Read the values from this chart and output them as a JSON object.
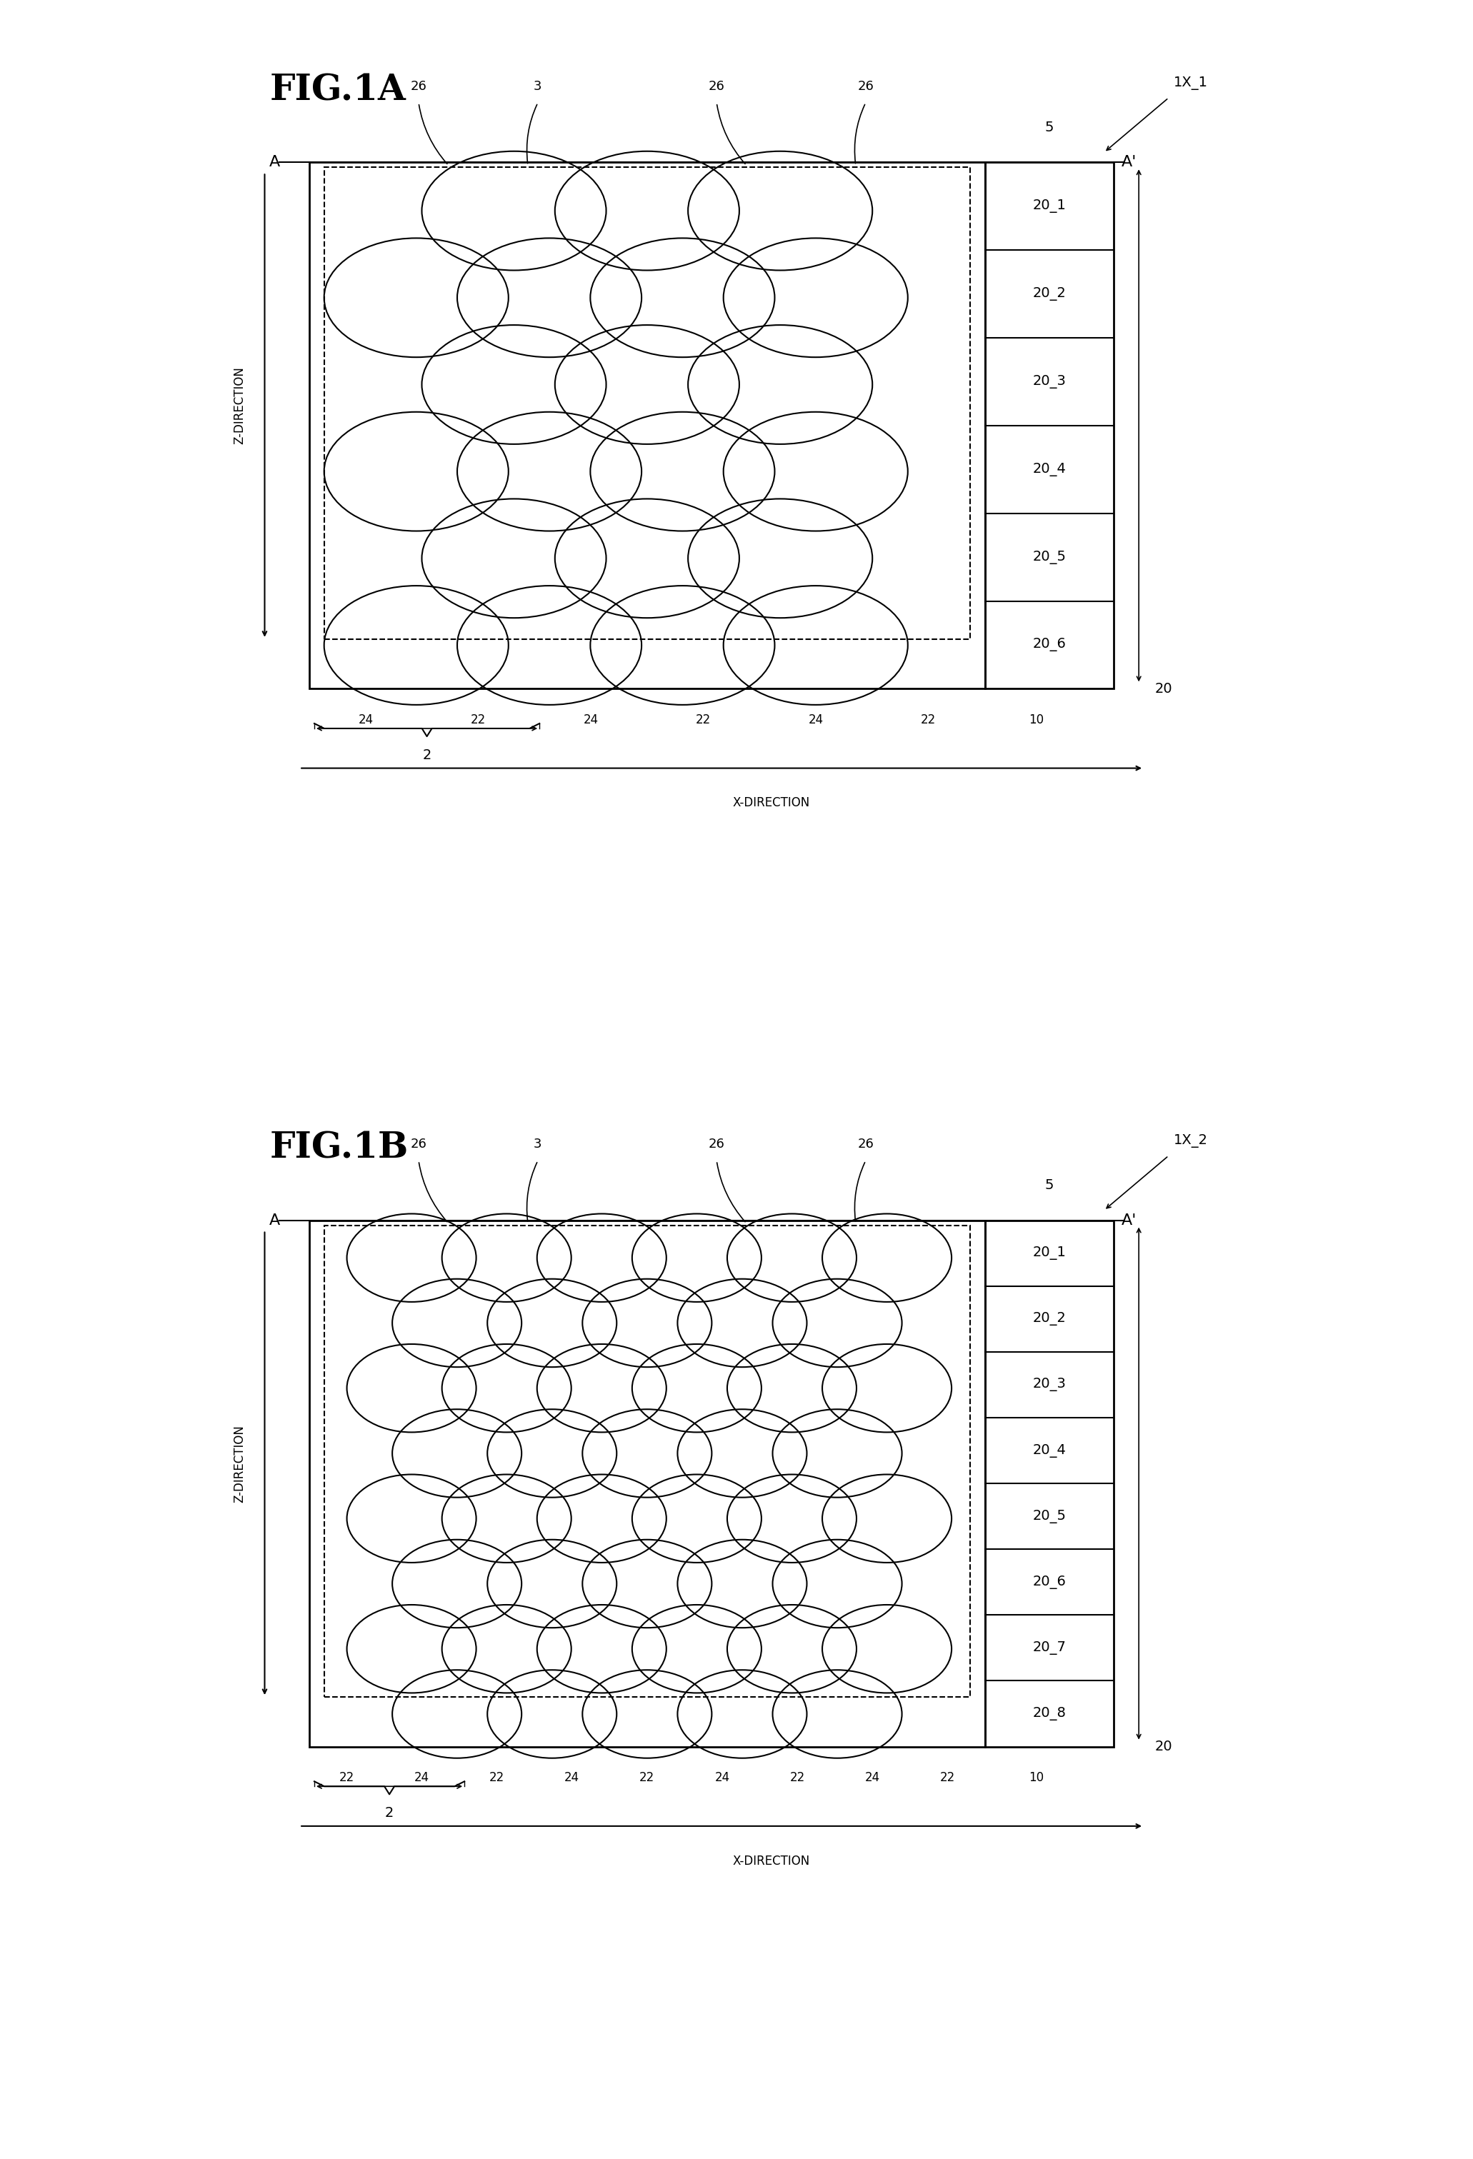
{
  "fig_title_A": "FIG.1A",
  "fig_title_B": "FIG.1B",
  "bg_color": "#ffffff",
  "line_color": "#000000",
  "figA": {
    "label": "1X_1",
    "layers_right": [
      "20_6",
      "20_5",
      "20_4",
      "20_3",
      "20_2",
      "20_1"
    ],
    "n_rows": 6,
    "n_cols": 5,
    "bottom_labels": [
      "24",
      "22",
      "24",
      "22",
      "24",
      "22"
    ],
    "bottom_unit": "2",
    "label_10": "10",
    "label_20": "20",
    "label_5": "5",
    "label_A": "A",
    "label_Ap": "A'",
    "top_labels": [
      "26",
      "3",
      "26",
      "26"
    ],
    "z_dir_label": "Z-DIRECTION",
    "x_dir_label": "X-DIRECTION"
  },
  "figB": {
    "label": "1X_2",
    "layers_right": [
      "20_8",
      "20_7",
      "20_6",
      "20_5",
      "20_4",
      "20_3",
      "20_2",
      "20_1"
    ],
    "n_rows": 8,
    "n_cols": 7,
    "bottom_labels": [
      "22",
      "24",
      "22",
      "24",
      "22",
      "24",
      "22",
      "24",
      "22"
    ],
    "bottom_unit": "2",
    "label_10": "10",
    "label_20": "20",
    "label_5": "5",
    "label_A": "A",
    "label_Ap": "A'",
    "top_labels": [
      "26",
      "3",
      "26",
      "26"
    ],
    "z_dir_label": "Z-DIRECTION",
    "x_dir_label": "X-DIRECTION"
  }
}
